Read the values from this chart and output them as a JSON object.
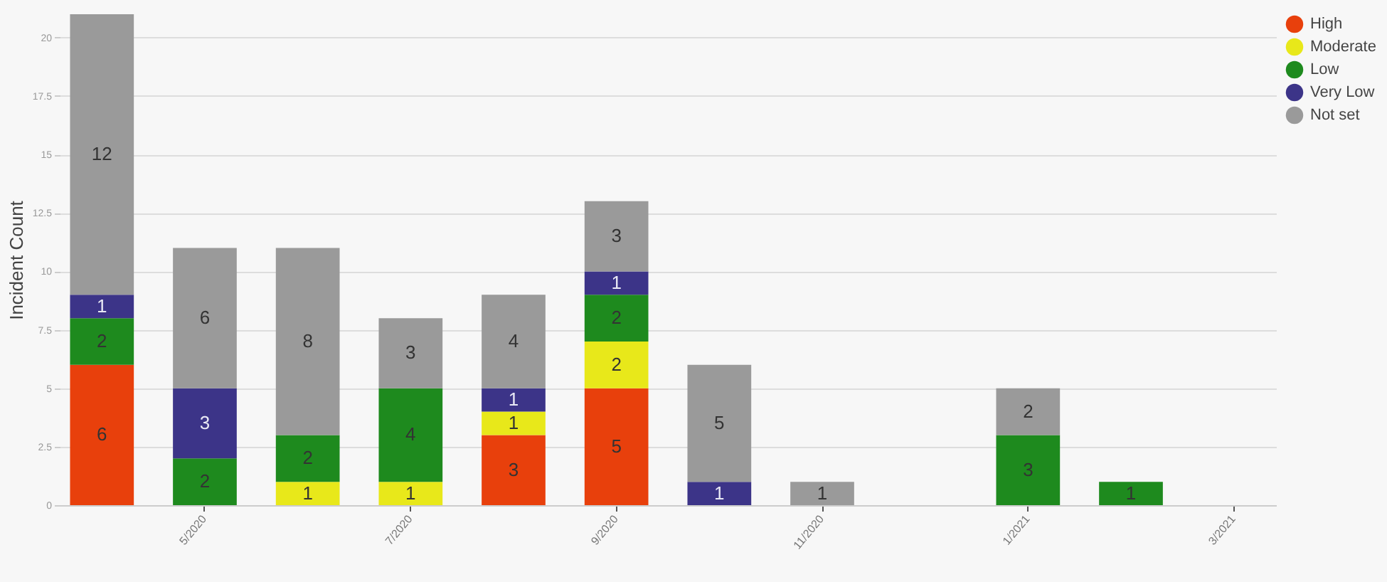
{
  "chart_data": {
    "type": "bar",
    "stacked": true,
    "ylabel": "Incident Count",
    "categories": [
      null,
      "5/2020",
      null,
      "7/2020",
      null,
      "9/2020",
      null,
      "11/2020",
      null,
      "1/2021",
      null,
      "3/2021"
    ],
    "series": [
      {
        "name": "High",
        "color": "#e8400c",
        "values": [
          6,
          null,
          null,
          null,
          3,
          5,
          null,
          null,
          null,
          null,
          null,
          null
        ]
      },
      {
        "name": "Moderate",
        "color": "#e8e81a",
        "values": [
          null,
          null,
          1,
          1,
          1,
          2,
          null,
          null,
          null,
          null,
          null,
          null
        ]
      },
      {
        "name": "Low",
        "color": "#1e8a1e",
        "values": [
          2,
          2,
          2,
          4,
          null,
          2,
          null,
          null,
          null,
          3,
          1,
          null
        ]
      },
      {
        "name": "Very Low",
        "color": "#3c3488",
        "values": [
          1,
          3,
          null,
          null,
          1,
          1,
          1,
          null,
          null,
          null,
          null,
          null
        ]
      },
      {
        "name": "Not set",
        "color": "#9a9a9a",
        "values": [
          12,
          6,
          8,
          3,
          4,
          3,
          5,
          1,
          null,
          2,
          null,
          null
        ]
      }
    ],
    "ylim": [
      0,
      21
    ],
    "yticks": [
      0,
      2.5,
      5,
      7.5,
      10,
      12.5,
      15,
      17.5,
      20
    ],
    "grid": "y",
    "legend": "top right",
    "data_labels": true
  }
}
